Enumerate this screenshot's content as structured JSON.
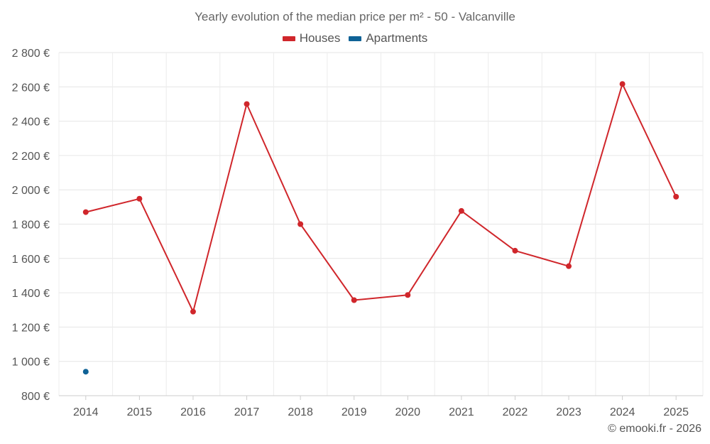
{
  "chart_data": {
    "type": "line",
    "title": "Yearly evolution of the median price per m² - 50 - Valcanville",
    "categories": [
      "2014",
      "2015",
      "2016",
      "2017",
      "2018",
      "2019",
      "2020",
      "2021",
      "2022",
      "2023",
      "2024",
      "2025"
    ],
    "series": [
      {
        "name": "Houses",
        "color": "#d0262b",
        "values": [
          1870,
          1948,
          1290,
          2500,
          1800,
          1357,
          1387,
          1877,
          1645,
          1555,
          2617,
          1960
        ]
      },
      {
        "name": "Apartments",
        "color": "#0f6296",
        "values": [
          940,
          null,
          null,
          null,
          null,
          null,
          null,
          null,
          null,
          null,
          null,
          null
        ]
      }
    ],
    "ylim": [
      800,
      2800
    ],
    "yticks": [
      800,
      1000,
      1200,
      1400,
      1600,
      1800,
      2000,
      2200,
      2400,
      2600,
      2800
    ],
    "ytick_labels": [
      "800 €",
      "1 000 €",
      "1 200 €",
      "1 400 €",
      "1 600 €",
      "1 800 €",
      "2 000 €",
      "2 200 €",
      "2 400 €",
      "2 600 €",
      "2 800 €"
    ],
    "grid": true,
    "legend_position": "top-center"
  },
  "credit": "© emooki.fr - 2026"
}
